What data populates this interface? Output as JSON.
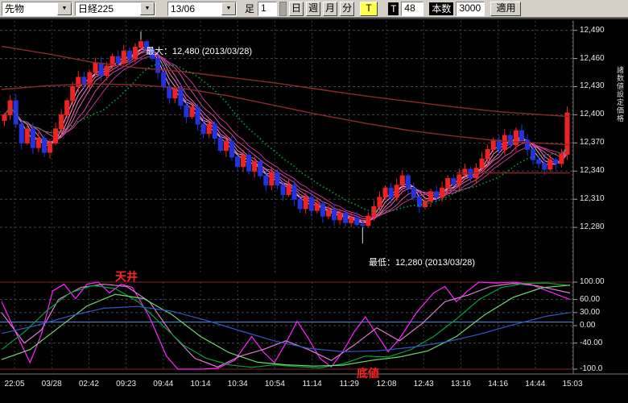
{
  "toolbar": {
    "instrument": "先物",
    "symbol": "日経225",
    "contract": "13/06",
    "ashi_label": "足",
    "ashi_value": "1",
    "period_buttons": [
      "日",
      "週",
      "月",
      "分"
    ],
    "tick_label": "T",
    "t_label": "T",
    "count_value": "48",
    "bars_label": "本数",
    "bars_value": "3000",
    "apply_label": "適用"
  },
  "side_label": "諸数値設定価格",
  "annotations": {
    "max_label": "最大：12,480 (2013/03/28)",
    "min_label": "最低：12,280 (2013/03/28)",
    "ceiling": "天井",
    "bottom": "底値"
  },
  "price_axis": {
    "ticks": [
      {
        "label": "12,490",
        "price": 12490
      },
      {
        "label": "12,460",
        "price": 12460
      },
      {
        "label": "12,430",
        "price": 12430
      },
      {
        "label": "12,400",
        "price": 12400
      },
      {
        "label": "12,370",
        "price": 12370
      },
      {
        "label": "12,340",
        "price": 12340
      },
      {
        "label": "12,310",
        "price": 12310
      },
      {
        "label": "12,280",
        "price": 12280
      }
    ]
  },
  "osc_axis": {
    "ticks": [
      {
        "label": "100.00",
        "value": 100
      },
      {
        "label": "60.00",
        "value": 60
      },
      {
        "label": "30.00",
        "value": 30
      },
      {
        "label": "0.00",
        "value": 0
      },
      {
        "label": "-40.00",
        "value": -40
      },
      {
        "label": "-100.0",
        "value": -100
      }
    ]
  },
  "x_axis": {
    "labels": [
      "22:05",
      "03/28",
      "02:42",
      "09:23",
      "09:44",
      "10:14",
      "10:34",
      "10:54",
      "11:14",
      "11:29",
      "12:08",
      "12:43",
      "13:16",
      "14:16",
      "14:44",
      "15:03"
    ]
  },
  "chart_data": {
    "type": "candlestick",
    "ylim": [
      12232,
      12500
    ],
    "grid_prices": [
      12490,
      12460,
      12430,
      12400,
      12370,
      12340,
      12310,
      12280
    ],
    "up_color": "#ee2222",
    "down_color": "#2233dd",
    "closes": [
      12400,
      12415,
      12390,
      12370,
      12385,
      12365,
      12375,
      12360,
      12370,
      12385,
      12400,
      12415,
      12430,
      12440,
      12432,
      12445,
      12455,
      12442,
      12452,
      12462,
      12455,
      12468,
      12460,
      12472,
      12478,
      12470,
      12460,
      12445,
      12430,
      12418,
      12428,
      12410,
      12398,
      12408,
      12390,
      12380,
      12390,
      12375,
      12362,
      12372,
      12355,
      12345,
      12357,
      12340,
      12350,
      12335,
      12325,
      12338,
      12325,
      12315,
      12325,
      12310,
      12300,
      12312,
      12298,
      12305,
      12292,
      12298,
      12288,
      12295,
      12285,
      12290,
      12283,
      12282,
      12292,
      12302,
      12312,
      12322,
      12312,
      12325,
      12335,
      12322,
      12312,
      12302,
      12308,
      12318,
      12312,
      12322,
      12332,
      12326,
      12336,
      12342,
      12333,
      12343,
      12353,
      12363,
      12373,
      12363,
      12378,
      12368,
      12383,
      12373,
      12363,
      12352,
      12348,
      12342,
      12352,
      12348,
      12358,
      12402
    ],
    "max_point": {
      "index": 24,
      "price": 12480
    },
    "min_point": {
      "index": 63,
      "price": 12280
    },
    "overlays": {
      "ribbon": {
        "periods": [
          3,
          4,
          5,
          6,
          8,
          10
        ],
        "colors": [
          "#ffb3e0",
          "#ff94d4",
          "#f778c4",
          "#ea5cb2",
          "#d845a0",
          "#c53390"
        ]
      },
      "green_ma": {
        "period": 16,
        "color": "#00a33c"
      },
      "dark_lines": {
        "color": "#8b2a2a",
        "lines": [
          [
            [
              0,
              12473
            ],
            [
              0.08,
              12465
            ],
            [
              0.16,
              12456
            ],
            [
              0.24,
              12450
            ],
            [
              0.32,
              12446
            ],
            [
              0.4,
              12440
            ],
            [
              0.48,
              12434
            ],
            [
              0.56,
              12427
            ],
            [
              0.64,
              12420
            ],
            [
              0.72,
              12414
            ],
            [
              0.8,
              12408
            ],
            [
              0.88,
              12403
            ],
            [
              1,
              12398
            ]
          ],
          [
            [
              0,
              12427
            ],
            [
              0.08,
              12431
            ],
            [
              0.16,
              12433
            ],
            [
              0.24,
              12432
            ],
            [
              0.32,
              12428
            ],
            [
              0.4,
              12420
            ],
            [
              0.48,
              12410
            ],
            [
              0.56,
              12400
            ],
            [
              0.64,
              12391
            ],
            [
              0.72,
              12383
            ],
            [
              0.8,
              12377
            ],
            [
              0.88,
              12372
            ],
            [
              1,
              12368
            ]
          ],
          [
            [
              0.8,
              12338
            ],
            [
              1,
              12338
            ]
          ]
        ]
      }
    },
    "oscillator": {
      "ylim": [
        -100,
        100
      ],
      "grid_values": [
        100,
        60,
        30,
        0,
        -40,
        -100
      ],
      "ref_line": {
        "value": 8,
        "color": "#4f8fe0"
      },
      "lines": [
        {
          "name": "rci-fast-magenta",
          "color": "#ff22ff",
          "points": [
            [
              0,
              55
            ],
            [
              0.03,
              -30
            ],
            [
              0.05,
              -85
            ],
            [
              0.07,
              -20
            ],
            [
              0.09,
              80
            ],
            [
              0.11,
              95
            ],
            [
              0.13,
              62
            ],
            [
              0.15,
              95
            ],
            [
              0.17,
              100
            ],
            [
              0.19,
              75
            ],
            [
              0.21,
              95
            ],
            [
              0.23,
              88
            ],
            [
              0.26,
              20
            ],
            [
              0.29,
              -70
            ],
            [
              0.31,
              -100
            ],
            [
              0.35,
              -100
            ],
            [
              0.38,
              -98
            ],
            [
              0.41,
              -80
            ],
            [
              0.44,
              -25
            ],
            [
              0.46,
              -60
            ],
            [
              0.48,
              -85
            ],
            [
              0.5,
              -40
            ],
            [
              0.52,
              10
            ],
            [
              0.54,
              -30
            ],
            [
              0.56,
              -75
            ],
            [
              0.58,
              -95
            ],
            [
              0.6,
              -60
            ],
            [
              0.62,
              -15
            ],
            [
              0.64,
              20
            ],
            [
              0.66,
              -20
            ],
            [
              0.68,
              -60
            ],
            [
              0.7,
              -30
            ],
            [
              0.73,
              30
            ],
            [
              0.76,
              75
            ],
            [
              0.78,
              90
            ],
            [
              0.8,
              55
            ],
            [
              0.82,
              80
            ],
            [
              0.84,
              100
            ],
            [
              0.87,
              98
            ],
            [
              0.9,
              100
            ],
            [
              0.93,
              95
            ],
            [
              0.96,
              80
            ],
            [
              1,
              60
            ]
          ]
        },
        {
          "name": "rci-slow-magenta",
          "color": "#e07ad0",
          "points": [
            [
              0,
              30
            ],
            [
              0.04,
              -40
            ],
            [
              0.07,
              -10
            ],
            [
              0.1,
              60
            ],
            [
              0.14,
              88
            ],
            [
              0.18,
              95
            ],
            [
              0.22,
              90
            ],
            [
              0.26,
              55
            ],
            [
              0.3,
              -20
            ],
            [
              0.34,
              -75
            ],
            [
              0.38,
              -95
            ],
            [
              0.42,
              -70
            ],
            [
              0.46,
              -55
            ],
            [
              0.5,
              -35
            ],
            [
              0.54,
              -55
            ],
            [
              0.58,
              -80
            ],
            [
              0.62,
              -45
            ],
            [
              0.66,
              -5
            ],
            [
              0.7,
              -35
            ],
            [
              0.74,
              5
            ],
            [
              0.78,
              55
            ],
            [
              0.82,
              70
            ],
            [
              0.86,
              90
            ],
            [
              0.9,
              97
            ],
            [
              0.94,
              92
            ],
            [
              1,
              75
            ]
          ]
        },
        {
          "name": "rci-fast-green",
          "color": "#00a33c",
          "points": [
            [
              0,
              -55
            ],
            [
              0.04,
              -15
            ],
            [
              0.08,
              35
            ],
            [
              0.12,
              75
            ],
            [
              0.16,
              92
            ],
            [
              0.2,
              85
            ],
            [
              0.24,
              55
            ],
            [
              0.28,
              5
            ],
            [
              0.32,
              -45
            ],
            [
              0.36,
              -75
            ],
            [
              0.4,
              -90
            ],
            [
              0.44,
              -96
            ],
            [
              0.48,
              -90
            ],
            [
              0.52,
              -94
            ],
            [
              0.56,
              -97
            ],
            [
              0.6,
              -88
            ],
            [
              0.64,
              -70
            ],
            [
              0.68,
              -72
            ],
            [
              0.72,
              -55
            ],
            [
              0.76,
              -25
            ],
            [
              0.8,
              15
            ],
            [
              0.84,
              60
            ],
            [
              0.88,
              88
            ],
            [
              0.92,
              97
            ],
            [
              0.96,
              98
            ],
            [
              1,
              92
            ]
          ]
        },
        {
          "name": "rci-slow-green",
          "color": "#6fd66f",
          "points": [
            [
              0,
              -78
            ],
            [
              0.05,
              -55
            ],
            [
              0.1,
              -5
            ],
            [
              0.15,
              45
            ],
            [
              0.2,
              72
            ],
            [
              0.25,
              62
            ],
            [
              0.3,
              25
            ],
            [
              0.35,
              -25
            ],
            [
              0.4,
              -62
            ],
            [
              0.45,
              -84
            ],
            [
              0.5,
              -90
            ],
            [
              0.55,
              -93
            ],
            [
              0.6,
              -91
            ],
            [
              0.65,
              -80
            ],
            [
              0.7,
              -72
            ],
            [
              0.75,
              -58
            ],
            [
              0.8,
              -25
            ],
            [
              0.85,
              25
            ],
            [
              0.9,
              65
            ],
            [
              0.95,
              87
            ],
            [
              1,
              93
            ]
          ]
        },
        {
          "name": "rci-blue",
          "color": "#3355cc",
          "points": [
            [
              0,
              -18
            ],
            [
              0.06,
              0
            ],
            [
              0.12,
              22
            ],
            [
              0.18,
              40
            ],
            [
              0.24,
              44
            ],
            [
              0.3,
              33
            ],
            [
              0.36,
              12
            ],
            [
              0.42,
              -12
            ],
            [
              0.48,
              -35
            ],
            [
              0.54,
              -52
            ],
            [
              0.6,
              -60
            ],
            [
              0.66,
              -58
            ],
            [
              0.72,
              -50
            ],
            [
              0.78,
              -38
            ],
            [
              0.84,
              -20
            ],
            [
              0.9,
              2
            ],
            [
              0.96,
              22
            ],
            [
              1,
              30
            ]
          ]
        }
      ]
    }
  }
}
